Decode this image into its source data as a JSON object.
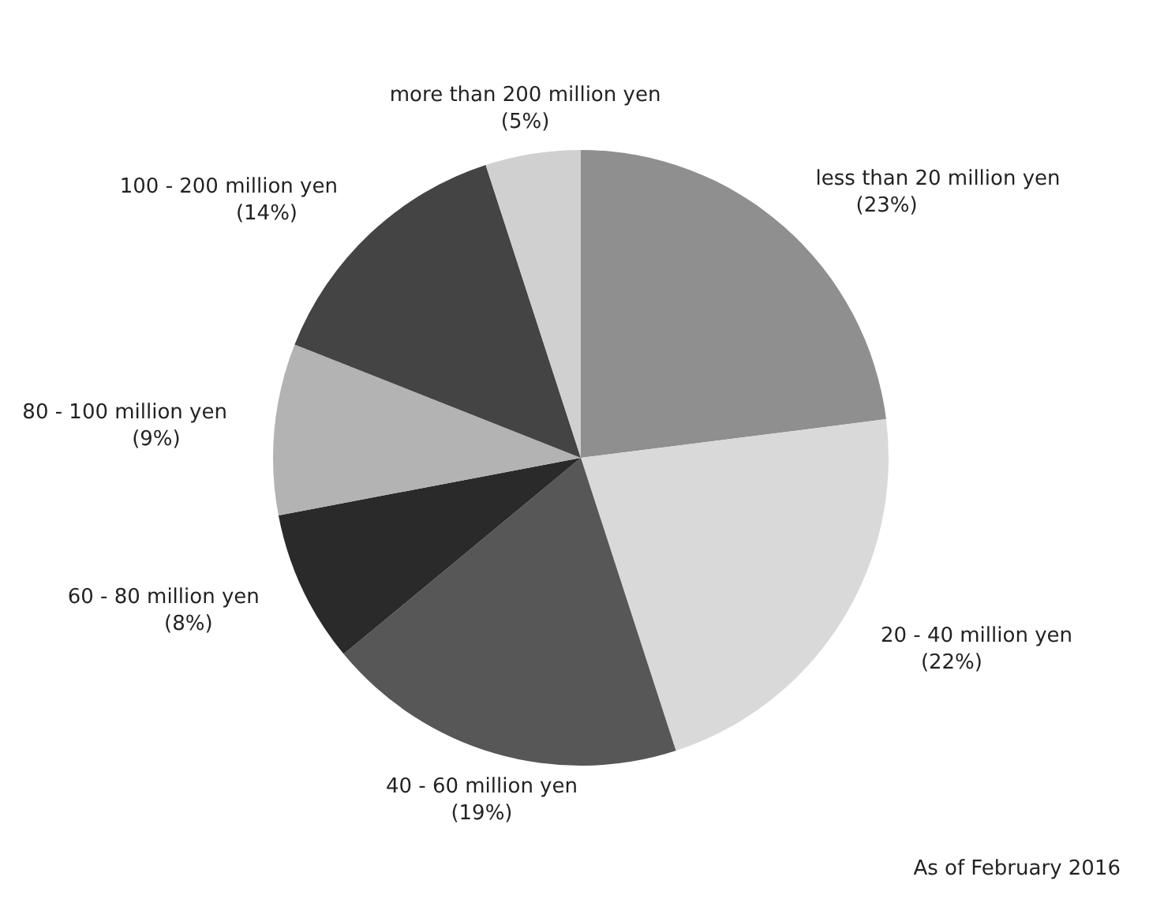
{
  "chart_data": {
    "type": "pie",
    "categories": [
      "less than 20 million yen",
      "20 - 40 million yen",
      "40 - 60 million yen",
      "60 - 80 million yen",
      "80 - 100 million yen",
      "100 - 200 million yen",
      "more than 200 million yen"
    ],
    "values": [
      23,
      22,
      19,
      8,
      9,
      14,
      5
    ],
    "value_labels": [
      "(23%)",
      "(22%)",
      "(19%)",
      "(8%)",
      "(9%)",
      "(14%)",
      "(5%)"
    ],
    "colors": [
      "#8f8f8f",
      "#d9d9d9",
      "#575757",
      "#2a2a2a",
      "#b3b3b3",
      "#444444",
      "#d0d0d0"
    ],
    "annotations": [
      "As of February 2016"
    ]
  }
}
